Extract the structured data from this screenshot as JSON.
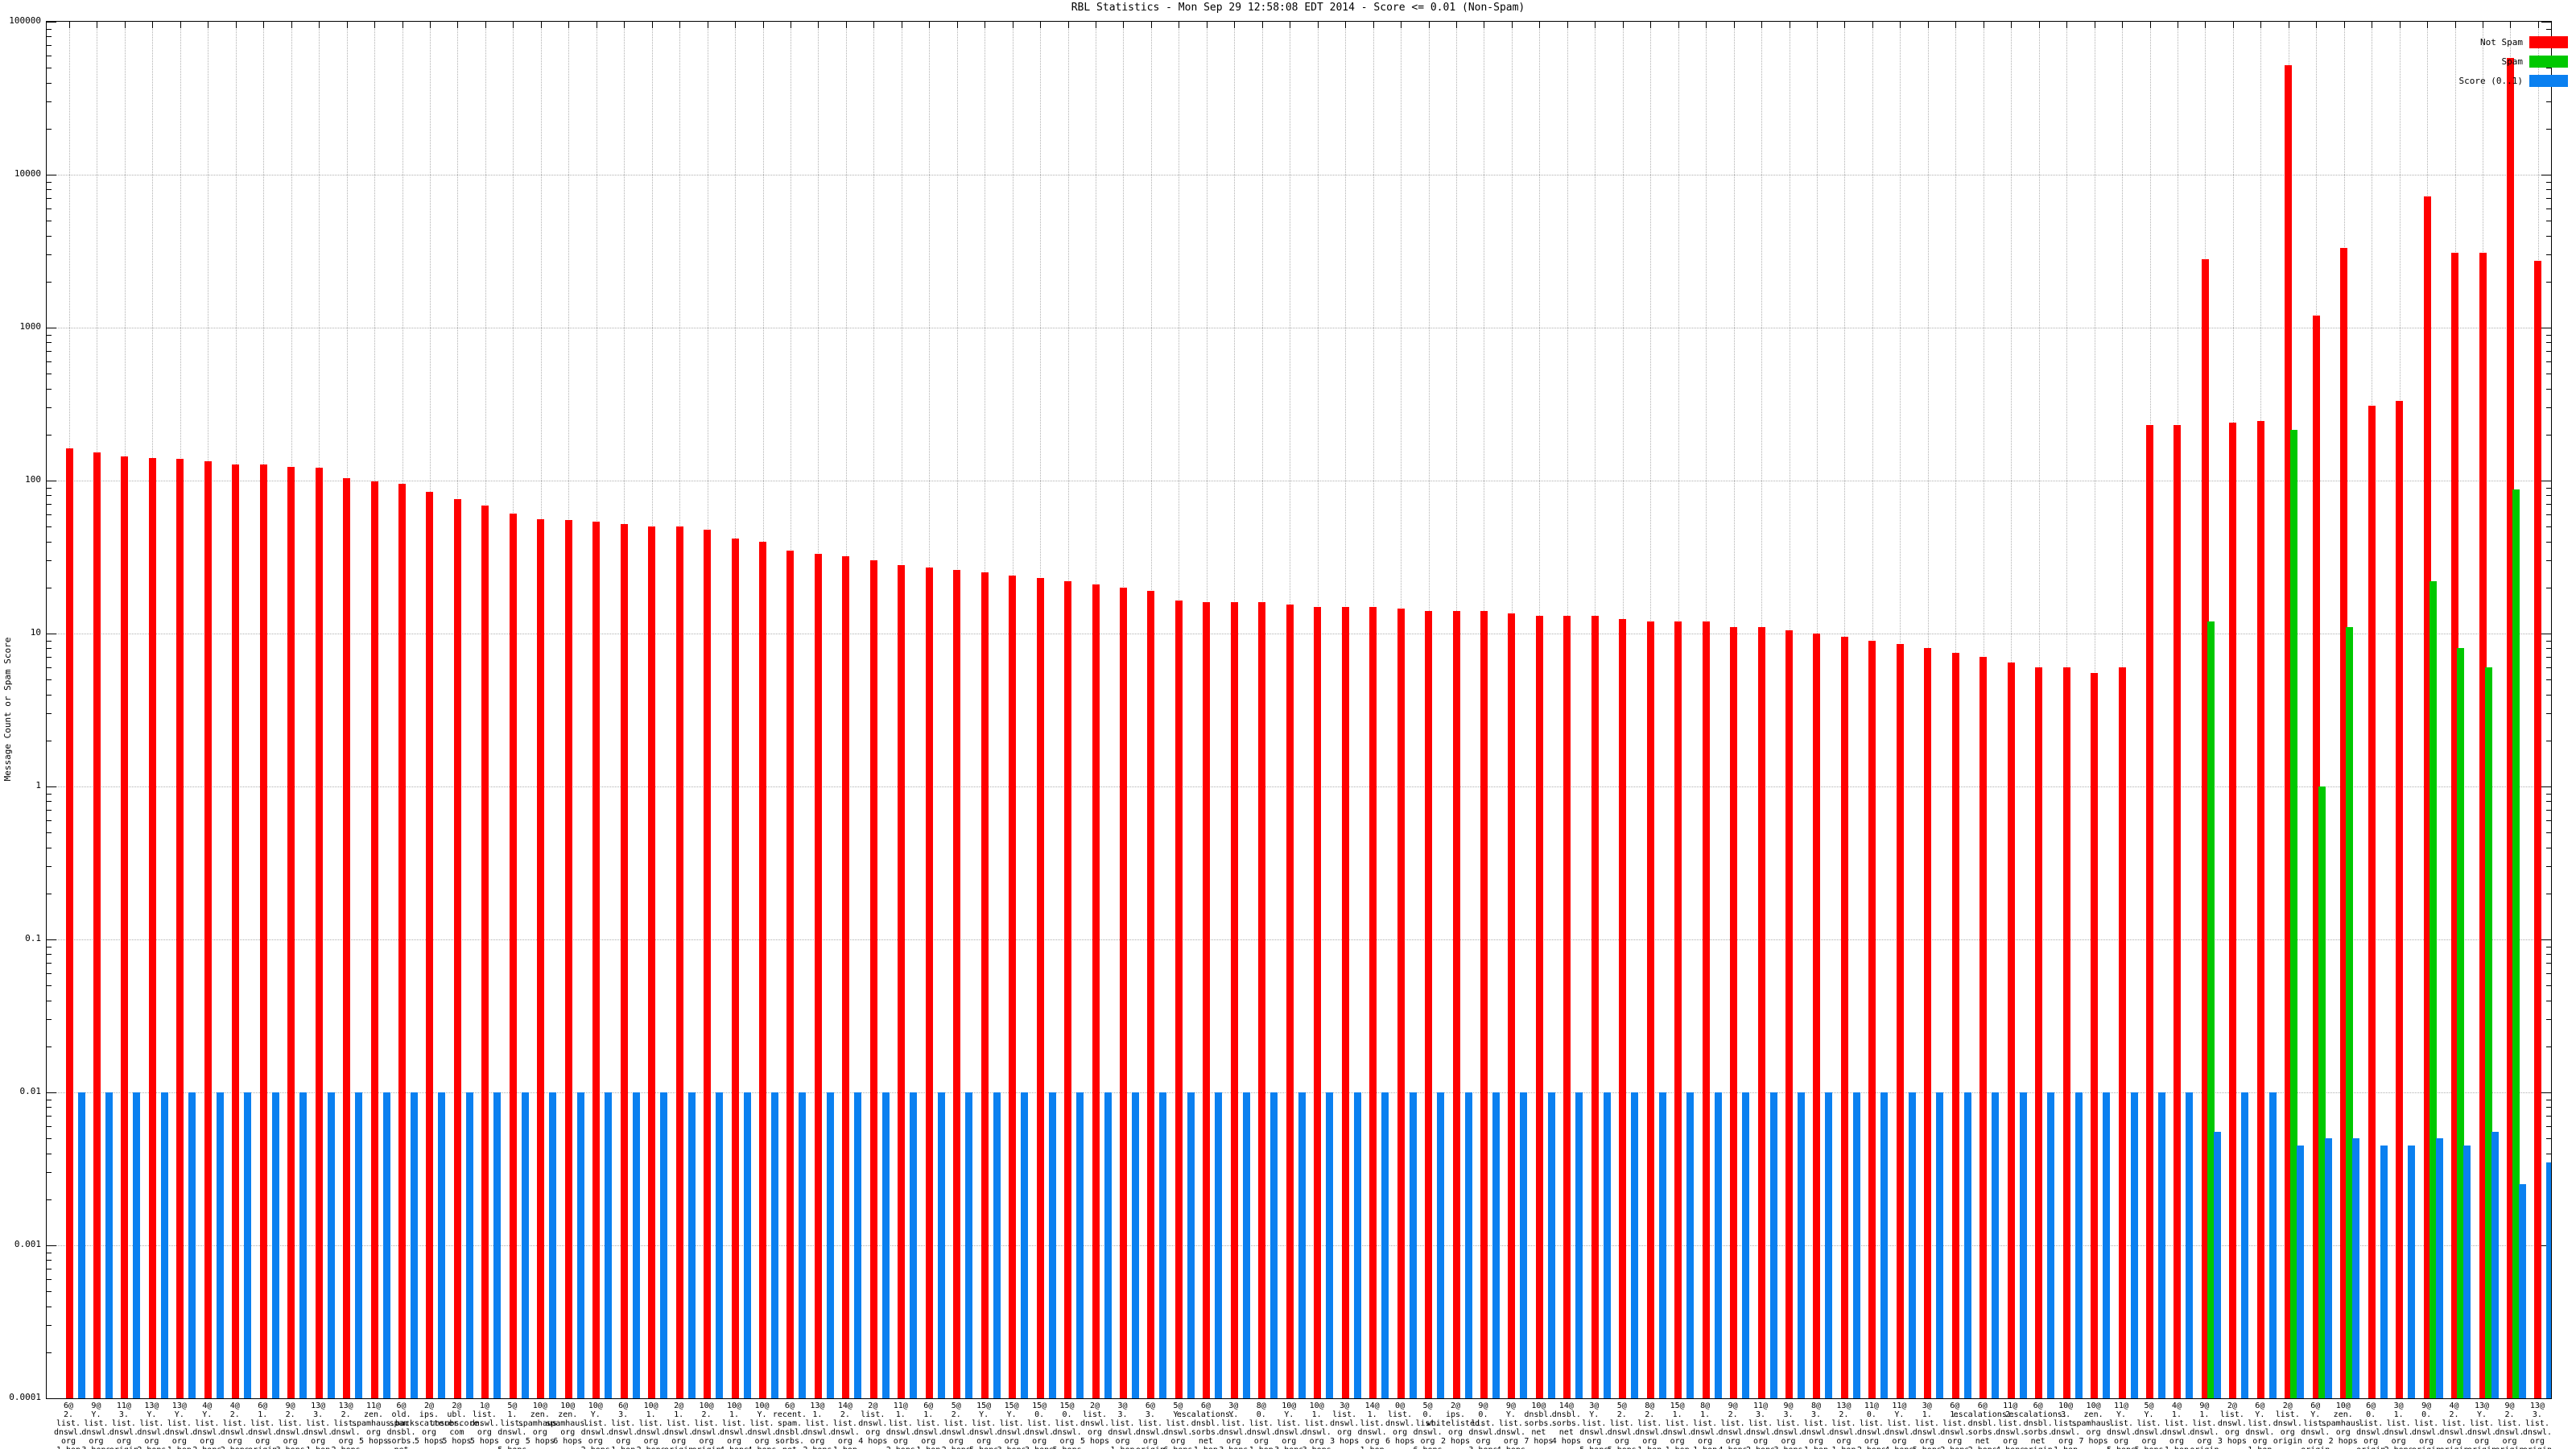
{
  "title": "RBL Statistics - Mon Sep 29 12:58:08 EDT 2014 - Score <= 0.01 (Non-Spam)",
  "legend": [
    {
      "label": "Not Spam",
      "color": "#ff0000"
    },
    {
      "label": "Spam",
      "color": "#00c800"
    },
    {
      "label": "Score (0..1)",
      "color": "#0a80f0"
    }
  ],
  "y_axis": {
    "label": "Message Count or Spam Score",
    "ticks": [
      "100000",
      "10000",
      "1000",
      "100",
      "10",
      "1",
      "0.1",
      "0.01",
      "0.001",
      "0.0001"
    ]
  },
  "chart_data": {
    "type": "bar",
    "y_scale": "log",
    "ylim": [
      0.0001,
      100000
    ],
    "title": "RBL Statistics - Mon Sep 29 12:58:08 EDT 2014 - Score <= 0.01 (Non-Spam)",
    "ylabel": "Message Count or Spam Score",
    "grid": true,
    "legend_position": "top-right",
    "categories": [
      [
        "6@",
        "2.",
        "list.",
        "dnswl.",
        "org",
        "1 hop"
      ],
      [
        "9@",
        "Y.",
        "list.",
        "dnswl.",
        "org",
        "3 hops"
      ],
      [
        "11@",
        "3.",
        "list.",
        "dnswl.",
        "org",
        "origin"
      ],
      [
        "13@",
        "Y.",
        "list.",
        "dnswl.",
        "org",
        "2 hops"
      ],
      [
        "13@",
        "Y.",
        "list.",
        "dnswl.",
        "org",
        "1 hop"
      ],
      [
        "4@",
        "Y.",
        "list.",
        "dnswl.",
        "org",
        "2 hops"
      ],
      [
        "4@",
        "2.",
        "list.",
        "dnswl.",
        "org",
        "2 hops"
      ],
      [
        "6@",
        "1.",
        "list.",
        "dnswl.",
        "org",
        "origin"
      ],
      [
        "9@",
        "2.",
        "list.",
        "dnswl.",
        "org",
        "3 hops"
      ],
      [
        "13@",
        "3.",
        "list.",
        "dnswl.",
        "org",
        "1 hop"
      ],
      [
        "13@",
        "2.",
        "list.",
        "dnswl.",
        "org",
        "2 hops"
      ],
      [
        "11@",
        "zen.",
        "spamhaus.",
        "org",
        "5 hops"
      ],
      [
        "6@",
        "old.",
        "spam.",
        "dnsbl.",
        "sorbs.",
        "net",
        "5 hops"
      ],
      [
        "2@",
        "ips.",
        "backscatterer.",
        "org",
        "5 hops"
      ],
      [
        "2@",
        "ubl.",
        "unsubscore.",
        "com",
        "5 hops"
      ],
      [
        "1@",
        "list.",
        "dnswl.",
        "org",
        "5 hops"
      ],
      [
        "5@",
        "1.",
        "list.",
        "dnswl.",
        "org",
        "5 hops"
      ],
      [
        "10@",
        "zen.",
        "spamhaus.",
        "org",
        "5 hops"
      ],
      [
        "10@",
        "zen.",
        "spamhaus.",
        "org",
        "6 hops"
      ],
      [
        "10@",
        "Y.",
        "list.",
        "dnswl.",
        "org",
        "2 hops"
      ],
      [
        "6@",
        "3.",
        "list.",
        "dnswl.",
        "org",
        "1 hop"
      ],
      [
        "10@",
        "1.",
        "list.",
        "dnswl.",
        "org",
        "2 hops"
      ],
      [
        "2@",
        "1.",
        "list.",
        "dnswl.",
        "org",
        "origin"
      ],
      [
        "10@",
        "2.",
        "list.",
        "dnswl.",
        "org",
        "origin"
      ],
      [
        "10@",
        "1.",
        "list.",
        "dnswl.",
        "org",
        "4 hops"
      ],
      [
        "10@",
        "Y.",
        "list.",
        "dnswl.",
        "org",
        "4 hops"
      ],
      [
        "6@",
        "recent.",
        "spam.",
        "dnsbl.",
        "sorbs.",
        "net",
        "5 hops"
      ],
      [
        "13@",
        "1.",
        "list.",
        "dnswl.",
        "org",
        "2 hops"
      ],
      [
        "14@",
        "2.",
        "list.",
        "dnswl.",
        "org",
        "1 hop"
      ],
      [
        "2@",
        "list.",
        "dnswl.",
        "org",
        "4 hops"
      ],
      [
        "11@",
        "1.",
        "list.",
        "dnswl.",
        "org",
        "2 hops"
      ],
      [
        "6@",
        "1.",
        "list.",
        "dnswl.",
        "org",
        "1 hop"
      ],
      [
        "5@",
        "2.",
        "list.",
        "dnswl.",
        "org",
        "2 hops"
      ],
      [
        "15@",
        "Y.",
        "list.",
        "dnswl.",
        "org",
        "5 hops"
      ],
      [
        "15@",
        "Y.",
        "list.",
        "dnswl.",
        "org",
        "3 hops"
      ],
      [
        "15@",
        "0.",
        "list.",
        "dnswl.",
        "org",
        "3 hops"
      ],
      [
        "15@",
        "0.",
        "list.",
        "dnswl.",
        "org",
        "5 hops"
      ],
      [
        "2@",
        "list.",
        "dnswl.",
        "org",
        "5 hops"
      ],
      [
        "3@",
        "3.",
        "list.",
        "dnswl.",
        "org",
        "1 hop"
      ],
      [
        "6@",
        "3.",
        "list.",
        "dnswl.",
        "org",
        "origin"
      ],
      [
        "5@",
        "Y.",
        "list.",
        "dnswl.",
        "org",
        "6 hops"
      ],
      [
        "6@",
        "escalations.",
        "dnsbl.",
        "sorbs.",
        "net",
        "1 hop"
      ],
      [
        "3@",
        "Y.",
        "list.",
        "dnswl.",
        "org",
        "3 hops"
      ],
      [
        "8@",
        "0.",
        "list.",
        "dnswl.",
        "org",
        "1 hop"
      ],
      [
        "10@",
        "Y.",
        "list.",
        "dnswl.",
        "org",
        "3 hops"
      ],
      [
        "10@",
        "1.",
        "list.",
        "dnswl.",
        "org",
        "3 hops"
      ],
      [
        "3@",
        "list.",
        "dnswl.",
        "org",
        "3 hops"
      ],
      [
        "14@",
        "1.",
        "list.",
        "dnswl.",
        "org",
        "1 hop"
      ],
      [
        "0@",
        "list.",
        "dnswl.",
        "org",
        "6 hops"
      ],
      [
        "5@",
        "0.",
        "list.",
        "dnswl.",
        "org",
        "6 hops"
      ],
      [
        "2@",
        "ips.",
        "whitelisted.",
        "org",
        "2 hops"
      ],
      [
        "9@",
        "0.",
        "list.",
        "dnswl.",
        "org",
        "3 hops"
      ],
      [
        "9@",
        "Y.",
        "list.",
        "dnswl.",
        "org",
        "4 hops"
      ],
      [
        "10@",
        "dnsbl.",
        "sorbs.",
        "net",
        "7 hops"
      ],
      [
        "14@",
        "dnsbl.",
        "sorbs.",
        "net",
        "4 hops"
      ],
      [
        "3@",
        "Y.",
        "list.",
        "dnswl.",
        "org",
        "5 hops"
      ],
      [
        "5@",
        "2.",
        "list.",
        "dnswl.",
        "org",
        "5 hops"
      ],
      [
        "8@",
        "2.",
        "list.",
        "dnswl.",
        "org",
        "1 hop"
      ],
      [
        "15@",
        "1.",
        "list.",
        "dnswl.",
        "org",
        "1 hop"
      ],
      [
        "8@",
        "1.",
        "list.",
        "dnswl.",
        "org",
        "1 hop"
      ],
      [
        "9@",
        "2.",
        "list.",
        "dnswl.",
        "org",
        "4 hops"
      ],
      [
        "11@",
        "3.",
        "list.",
        "dnswl.",
        "org",
        "2 hops"
      ],
      [
        "9@",
        "3.",
        "list.",
        "dnswl.",
        "org",
        "3 hops"
      ],
      [
        "8@",
        "3.",
        "list.",
        "dnswl.",
        "org",
        "1 hop"
      ],
      [
        "13@",
        "2.",
        "list.",
        "dnswl.",
        "org",
        "1 hop"
      ],
      [
        "11@",
        "0.",
        "list.",
        "dnswl.",
        "org",
        "2 hops"
      ],
      [
        "11@",
        "Y.",
        "list.",
        "dnswl.",
        "org",
        "4 hops"
      ],
      [
        "3@",
        "1.",
        "list.",
        "dnswl.",
        "org",
        "5 hops"
      ],
      [
        "6@",
        "1.",
        "list.",
        "dnswl.",
        "org",
        "2 hops"
      ],
      [
        "6@",
        "escalations.",
        "dnsbl.",
        "sorbs.",
        "net",
        "2 hops"
      ],
      [
        "11@",
        "2.",
        "list.",
        "dnswl.",
        "org",
        "4 hops"
      ],
      [
        "6@",
        "escalations.",
        "dnsbl.",
        "sorbs.",
        "net",
        "origin"
      ],
      [
        "10@",
        "3.",
        "list.",
        "dnswl.",
        "org",
        "1 hop"
      ],
      [
        "10@",
        "zen.",
        "spamhaus.",
        "org",
        "7 hops"
      ],
      [
        "11@",
        "Y.",
        "list.",
        "dnswl.",
        "org",
        "5 hops"
      ],
      [
        "5@",
        "Y.",
        "list.",
        "dnswl.",
        "org",
        "5 hops"
      ],
      [
        "4@",
        "1.",
        "list.",
        "dnswl.",
        "org",
        "1 hop"
      ],
      [
        "9@",
        "1.",
        "list.",
        "dnswl.",
        "org",
        "origin"
      ],
      [
        "2@",
        "list.",
        "dnswl.",
        "org",
        "3 hops"
      ],
      [
        "6@",
        "Y.",
        "list.",
        "dnswl.",
        "org",
        "1 hop"
      ],
      [
        "2@",
        "list.",
        "dnswl.",
        "org",
        "origin"
      ],
      [
        "6@",
        "Y.",
        "list.",
        "dnswl.",
        "org",
        "origin"
      ],
      [
        "10@",
        "zen.",
        "spamhaus.",
        "org",
        "2 hops"
      ],
      [
        "6@",
        "0.",
        "list.",
        "dnswl.",
        "org",
        "origin"
      ],
      [
        "3@",
        "1.",
        "list.",
        "dnswl.",
        "org",
        "2 hops"
      ],
      [
        "9@",
        "0.",
        "list.",
        "dnswl.",
        "org",
        "origin"
      ],
      [
        "4@",
        "2.",
        "list.",
        "dnswl.",
        "org",
        "origin"
      ],
      [
        "13@",
        "Y.",
        "list.",
        "dnswl.",
        "org",
        "origin"
      ],
      [
        "9@",
        "2.",
        "list.",
        "dnswl.",
        "org",
        "origin"
      ],
      [
        "13@",
        "3.",
        "list.",
        "dnswl.",
        "org",
        "origin"
      ]
    ],
    "series": [
      {
        "name": "Not Spam",
        "color": "#ff0000",
        "values": [
          162,
          153,
          143,
          140,
          139,
          134,
          127,
          127,
          123,
          121,
          104,
          99,
          95,
          84,
          76,
          69,
          61,
          56,
          55,
          54,
          52,
          50,
          50,
          48,
          42,
          40,
          35,
          33,
          32,
          30,
          28,
          27,
          26,
          25,
          24,
          23,
          22,
          21,
          20,
          19,
          16.5,
          16,
          16,
          16,
          15.5,
          15,
          15,
          15,
          14.5,
          14,
          14,
          14,
          13.5,
          13,
          13,
          13,
          12.5,
          12,
          12,
          12,
          11,
          11,
          10.5,
          10,
          9.5,
          9,
          8.5,
          8,
          7.5,
          7,
          6.5,
          6,
          6,
          5.5,
          6,
          230,
          230,
          2800,
          240,
          245,
          52000,
          1200,
          3300,
          310,
          330,
          7200,
          3100,
          3100,
          58000,
          2750
        ]
      },
      {
        "name": "Spam",
        "color": "#00c800",
        "values": [
          0,
          0,
          0,
          0,
          0,
          0,
          0,
          0,
          0,
          0,
          0,
          0,
          0,
          0,
          0,
          0,
          0,
          0,
          0,
          0,
          0,
          0,
          0,
          0,
          0,
          0,
          0,
          0,
          0,
          0,
          0,
          0,
          0,
          0,
          0,
          0,
          0,
          0,
          0,
          0,
          0,
          0,
          0,
          0,
          0,
          0,
          0,
          0,
          0,
          0,
          0,
          0,
          0,
          0,
          0,
          0,
          0,
          0,
          0,
          0,
          0,
          0,
          0,
          0,
          0,
          0,
          0,
          0,
          0,
          0,
          0,
          0,
          0,
          0,
          0,
          0,
          0,
          12,
          0,
          0,
          215,
          1,
          11,
          0,
          0,
          22,
          8,
          6,
          87,
          0
        ]
      },
      {
        "name": "Score (0..1)",
        "color": "#0a80f0",
        "values": [
          0.01,
          0.01,
          0.01,
          0.01,
          0.01,
          0.01,
          0.01,
          0.01,
          0.01,
          0.01,
          0.01,
          0.01,
          0.01,
          0.01,
          0.01,
          0.01,
          0.01,
          0.01,
          0.01,
          0.01,
          0.01,
          0.01,
          0.01,
          0.01,
          0.01,
          0.01,
          0.01,
          0.01,
          0.01,
          0.01,
          0.01,
          0.01,
          0.01,
          0.01,
          0.01,
          0.01,
          0.01,
          0.01,
          0.01,
          0.01,
          0.01,
          0.01,
          0.01,
          0.01,
          0.01,
          0.01,
          0.01,
          0.01,
          0.01,
          0.01,
          0.01,
          0.01,
          0.01,
          0.01,
          0.01,
          0.01,
          0.01,
          0.01,
          0.01,
          0.01,
          0.01,
          0.01,
          0.01,
          0.01,
          0.01,
          0.01,
          0.01,
          0.01,
          0.01,
          0.01,
          0.01,
          0.01,
          0.01,
          0.01,
          0.01,
          0.01,
          0.01,
          0.0055,
          0.01,
          0.01,
          0.0045,
          0.005,
          0.005,
          0.0045,
          0.0045,
          0.005,
          0.0045,
          0.0055,
          0.0025,
          0.0035
        ]
      }
    ]
  }
}
